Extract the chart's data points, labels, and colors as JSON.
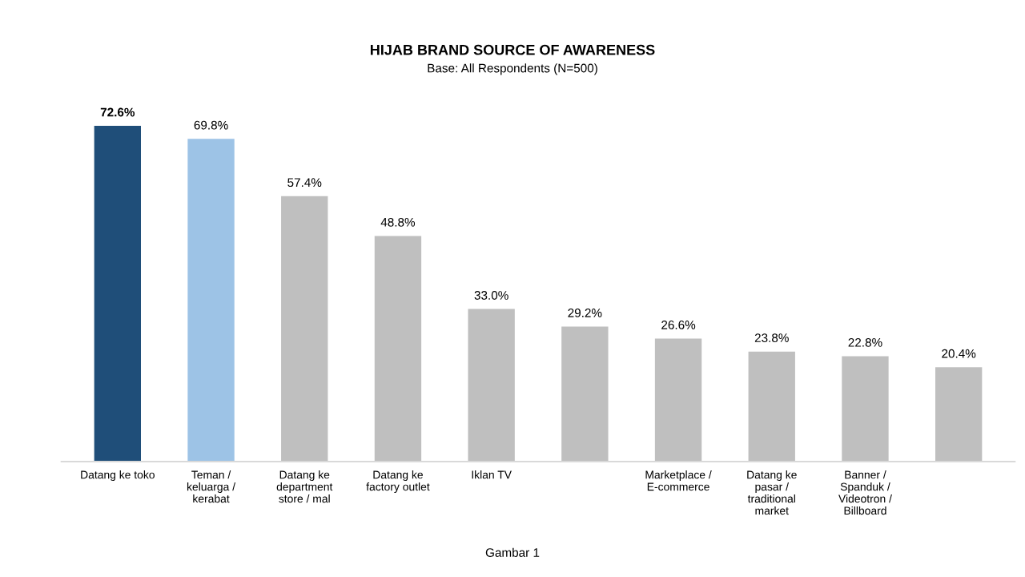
{
  "chart_data": {
    "type": "bar",
    "title": "HIJAB BRAND SOURCE OF AWARENESS",
    "subtitle": "Base: All Respondents (N=500)",
    "categories": [
      "Datang ke toko",
      "Teman / keluarga / kerabat",
      "Datang ke department store / mal",
      "Datang ke factory outlet",
      "Iklan TV",
      null,
      "Marketplace / E-commerce",
      "Datang ke pasar / traditional market",
      "Banner / Spanduk / Videotron / Billboard",
      null
    ],
    "values": [
      72.6,
      69.8,
      57.4,
      48.8,
      33.0,
      29.2,
      26.6,
      23.8,
      22.8,
      20.4
    ],
    "value_labels": [
      "72.6%",
      "69.8%",
      "57.4%",
      "48.8%",
      "33.0%",
      "29.2%",
      "26.6%",
      "23.8%",
      "22.8%",
      "20.4%"
    ],
    "colors": [
      "#1f4e79",
      "#9dc3e6",
      "#bfbfbf",
      "#bfbfbf",
      "#bfbfbf",
      "#bfbfbf",
      "#bfbfbf",
      "#bfbfbf",
      "#bfbfbf",
      "#bfbfbf"
    ],
    "annotations": [
      "Gambar 1"
    ],
    "grid": false,
    "legend": false
  }
}
